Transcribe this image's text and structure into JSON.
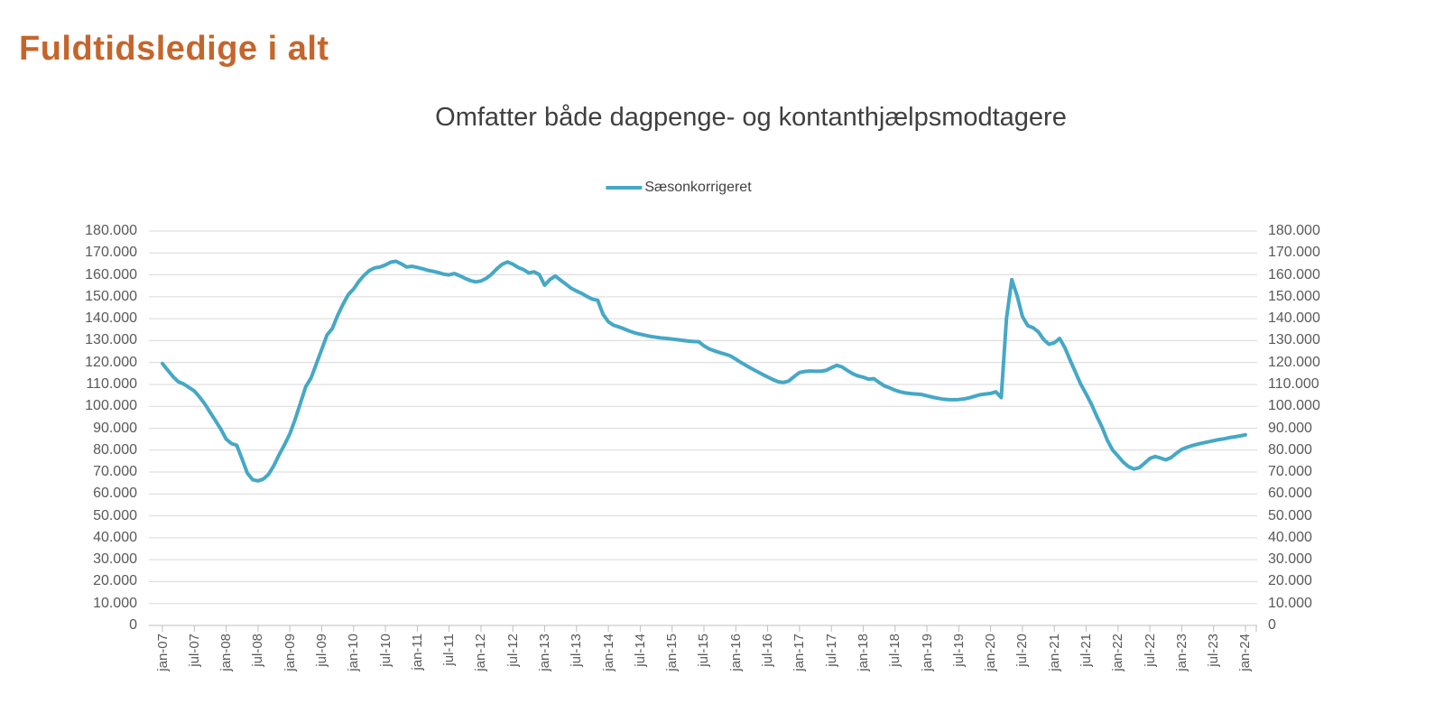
{
  "page": {
    "title": "Fuldtidsledige i alt"
  },
  "legend": {
    "items": [
      {
        "label": "Sæsonkorrigeret",
        "color": "#45A8C6"
      }
    ]
  },
  "colors": {
    "title": "#C4662C",
    "subtitle": "#3F3F3F",
    "line": "#45A8C6",
    "gridline": "#D9D9D9",
    "axis_line": "#BFBFBF",
    "tick_text": "#595959"
  },
  "chart_data": {
    "type": "line",
    "title": "Omfatter både dagpenge- og kontanthjælpsmodtagere",
    "ylim": [
      0,
      180000
    ],
    "y_tick_step": 10000,
    "grid": "horizontal",
    "legend_position": "top-center",
    "dual_y_axis": true,
    "y_tick_labels": [
      "180.000",
      "170.000",
      "160.000",
      "150.000",
      "140.000",
      "130.000",
      "120.000",
      "110.000",
      "100.000",
      "90.000",
      "80.000",
      "70.000",
      "60.000",
      "50.000",
      "40.000",
      "30.000",
      "20.000",
      "10.000",
      "0"
    ],
    "x_tick_labels": [
      "jan-07",
      "jul-07",
      "jan-08",
      "jul-08",
      "jan-09",
      "jul-09",
      "jan-10",
      "jul-10",
      "jan-11",
      "jul-11",
      "jan-12",
      "jul-12",
      "jan-13",
      "jul-13",
      "jan-14",
      "jul-14",
      "jan-15",
      "jul-15",
      "jan-16",
      "jul-16",
      "jan-17",
      "jul-17",
      "jan-18",
      "jul-18",
      "jan-19",
      "jul-19",
      "jan-20",
      "jul-20",
      "jan-21",
      "jul-21",
      "jan-22",
      "jul-22",
      "jan-23",
      "jul-23",
      "jan-24"
    ],
    "series": [
      {
        "name": "Sæsonkorrigeret",
        "color": "#45A8C6",
        "start": "jan-07",
        "end": "jan-24",
        "frequency": "monthly",
        "values": [
          119500,
          116500,
          113500,
          111200,
          110200,
          108600,
          107000,
          104200,
          101000,
          97200,
          93400,
          89600,
          85000,
          83000,
          82200,
          76000,
          69500,
          66500,
          66000,
          66800,
          69000,
          73000,
          78000,
          82500,
          87500,
          94000,
          101500,
          109000,
          113000,
          119500,
          126000,
          132500,
          135500,
          141500,
          146500,
          151000,
          153500,
          157000,
          159800,
          162000,
          163200,
          163600,
          164500,
          165800,
          166200,
          165000,
          163600,
          163900,
          163400,
          162800,
          162100,
          161600,
          161000,
          160300,
          160000,
          160600,
          159600,
          158400,
          157400,
          156800,
          157200,
          158400,
          160300,
          162800,
          164800,
          165900,
          164900,
          163400,
          162400,
          160900,
          161400,
          160100,
          155300,
          157900,
          159500,
          157600,
          155800,
          153900,
          152600,
          151500,
          150100,
          148900,
          148400,
          142000,
          138600,
          137000,
          136200,
          135300,
          134300,
          133500,
          132900,
          132400,
          131900,
          131500,
          131200,
          131000,
          130700,
          130400,
          130100,
          129800,
          129600,
          129500,
          127600,
          126200,
          125300,
          124500,
          123800,
          123000,
          121500,
          120000,
          118600,
          117200,
          115900,
          114600,
          113400,
          112200,
          111200,
          110900,
          111600,
          113600,
          115400,
          115900,
          116100,
          116000,
          116000,
          116400,
          117600,
          118700,
          118000,
          116400,
          114900,
          113900,
          113300,
          112400,
          112600,
          110900,
          109300,
          108400,
          107400,
          106600,
          106100,
          105800,
          105600,
          105400,
          104800,
          104200,
          103700,
          103300,
          103100,
          103000,
          103100,
          103400,
          103900,
          104600,
          105300,
          105600,
          105900,
          106600,
          104000,
          140000,
          157800,
          150500,
          141000,
          136800,
          135900,
          134000,
          130500,
          128300,
          129000,
          131000,
          126800,
          121000,
          115500,
          110000,
          105600,
          101000,
          95500,
          90500,
          84500,
          80000,
          77300,
          74500,
          72500,
          71400,
          72000,
          74000,
          76200,
          77100,
          76400,
          75600,
          76600,
          78600,
          80300,
          81300,
          82100,
          82700,
          83300,
          83800,
          84300,
          84800,
          85200,
          85700,
          86100,
          86500,
          87000
        ]
      }
    ]
  }
}
